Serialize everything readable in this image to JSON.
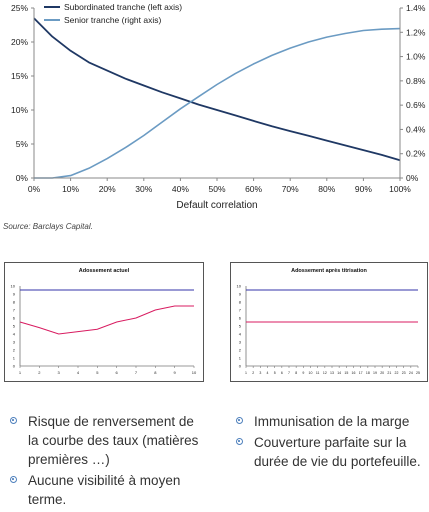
{
  "chart_data": [
    {
      "type": "line",
      "title": "",
      "xlabel": "Default correlation",
      "ylabel_left": "",
      "ylabel_right": "",
      "x": [
        0,
        5,
        10,
        15,
        20,
        25,
        30,
        35,
        40,
        45,
        50,
        55,
        60,
        65,
        70,
        75,
        80,
        85,
        90,
        95,
        100
      ],
      "x_ticks": [
        "0%",
        "10%",
        "20%",
        "30%",
        "40%",
        "50%",
        "60%",
        "70%",
        "80%",
        "90%",
        "100%"
      ],
      "xlim": [
        0,
        100
      ],
      "ylim_left": [
        0,
        25
      ],
      "ylim_right": [
        0,
        1.4
      ],
      "y_ticks_left": [
        "0%",
        "5%",
        "10%",
        "15%",
        "20%",
        "25%"
      ],
      "y_ticks_right": [
        "0%",
        "0.2%",
        "0.4%",
        "0.6%",
        "0.8%",
        "1.0%",
        "1.2%",
        "1.4%"
      ],
      "legend_position": "top-left",
      "source": "Source: Barclays Capital.",
      "series": [
        {
          "name": "Subordinated tranche (left axis)",
          "axis": "left",
          "color": "#1f3864",
          "values": [
            23.5,
            20.8,
            18.7,
            17.0,
            15.8,
            14.6,
            13.6,
            12.6,
            11.7,
            10.8,
            10.0,
            9.2,
            8.4,
            7.6,
            6.9,
            6.2,
            5.5,
            4.8,
            4.1,
            3.4,
            2.6
          ]
        },
        {
          "name": "Senior tranche (right axis)",
          "axis": "right",
          "color": "#6b9bc3",
          "values": [
            0.0,
            0.0,
            0.02,
            0.08,
            0.16,
            0.25,
            0.35,
            0.46,
            0.57,
            0.67,
            0.77,
            0.86,
            0.94,
            1.01,
            1.07,
            1.12,
            1.16,
            1.19,
            1.215,
            1.225,
            1.23
          ]
        }
      ]
    },
    {
      "type": "line",
      "title": "Adossement actuel",
      "x": [
        1,
        2,
        3,
        4,
        5,
        6,
        7,
        8,
        9,
        10
      ],
      "x_ticks": [
        "1",
        "2",
        "3",
        "4",
        "5",
        "6",
        "7",
        "8",
        "9",
        "10"
      ],
      "xlim": [
        1,
        10
      ],
      "ylim": [
        0,
        10
      ],
      "y_ticks": [
        "0",
        "1",
        "2",
        "3",
        "4",
        "5",
        "6",
        "7",
        "8",
        "9",
        "10"
      ],
      "series": [
        {
          "color": "#3333aa",
          "values": [
            9.5,
            9.5,
            9.5,
            9.5,
            9.5,
            9.5,
            9.5,
            9.5,
            9.5,
            9.5
          ]
        },
        {
          "color": "#d81b60",
          "values": [
            5.5,
            4.8,
            4.0,
            4.3,
            4.6,
            5.5,
            6.0,
            7.0,
            7.5,
            7.5
          ]
        }
      ]
    },
    {
      "type": "line",
      "title": "Adossement après titrisation",
      "x": [
        1,
        2,
        3,
        4,
        5,
        6,
        7,
        8,
        9,
        10,
        11,
        12,
        13,
        14,
        15,
        16,
        17,
        18,
        19,
        20,
        21,
        22,
        23,
        24,
        25
      ],
      "x_ticks": [
        "1",
        "2",
        "3",
        "4",
        "5",
        "6",
        "7",
        "8",
        "9",
        "10",
        "11",
        "12",
        "13",
        "14",
        "15",
        "16",
        "17",
        "18",
        "19",
        "20",
        "21",
        "22",
        "23",
        "24",
        "25"
      ],
      "xlim": [
        1,
        25
      ],
      "ylim": [
        0,
        10
      ],
      "y_ticks": [
        "0",
        "1",
        "2",
        "3",
        "4",
        "5",
        "6",
        "7",
        "8",
        "9",
        "10"
      ],
      "series": [
        {
          "color": "#3333aa",
          "values": [
            9.5,
            9.5,
            9.5,
            9.5,
            9.5,
            9.5,
            9.5,
            9.5,
            9.5,
            9.5,
            9.5,
            9.5,
            9.5,
            9.5,
            9.5,
            9.5,
            9.5,
            9.5,
            9.5,
            9.5,
            9.5,
            9.5,
            9.5,
            9.5,
            9.5
          ]
        },
        {
          "color": "#d81b60",
          "values": [
            5.5,
            5.5,
            5.5,
            5.5,
            5.5,
            5.5,
            5.5,
            5.5,
            5.5,
            5.5,
            5.5,
            5.5,
            5.5,
            5.5,
            5.5,
            5.5,
            5.5,
            5.5,
            5.5,
            5.5,
            5.5,
            5.5,
            5.5,
            5.5,
            5.5
          ]
        }
      ]
    }
  ],
  "bullets_left": [
    "Risque de renversement de la courbe des taux (matières premières …)",
    "Aucune visibilité à moyen terme."
  ],
  "bullets_right": [
    "Immunisation de la marge",
    "Couverture parfaite sur la durée de vie du portefeuille."
  ],
  "colors": {
    "bullet": "#4f81bd",
    "axis": "#888888",
    "small_chart_border": "#555555"
  }
}
